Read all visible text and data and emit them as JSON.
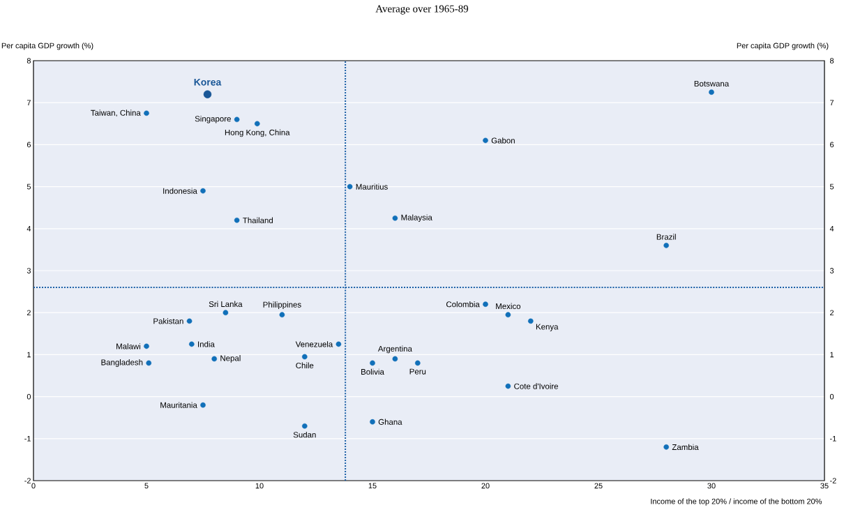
{
  "chart_data": {
    "type": "scatter",
    "title": "Average over 1965-89",
    "xlabel": "Income of the top 20% / income of the bottom 20%",
    "ylabel": "Per capita GDP growth (%)",
    "y2label": "Per capita GDP growth (%)",
    "xlim": [
      0,
      35
    ],
    "xticks": [
      0,
      5,
      10,
      15,
      20,
      25,
      30,
      35
    ],
    "ylim": [
      -2,
      8
    ],
    "yticks": [
      -2,
      -1,
      0,
      1,
      2,
      3,
      4,
      5,
      6,
      7,
      8
    ],
    "y2lim": [
      -2,
      8
    ],
    "y2ticks": [
      -2,
      -1,
      0,
      1,
      2,
      3,
      4,
      5,
      6,
      7,
      8
    ],
    "grid": "y",
    "legend": false,
    "series": [
      {
        "color": "#1170b9",
        "x": [
          5,
          9,
          9.9,
          7.5,
          9,
          30,
          20,
          14,
          16,
          28,
          8.5,
          11,
          6.9,
          5,
          7,
          8,
          5.1,
          13.5,
          12,
          15,
          16,
          17,
          20,
          21,
          22,
          21,
          7.5,
          12,
          15,
          28
        ],
        "values": [
          6.75,
          6.6,
          6.5,
          4.9,
          4.2,
          7.25,
          6.1,
          5,
          4.25,
          3.6,
          2,
          1.95,
          1.8,
          1.2,
          1.25,
          0.9,
          0.8,
          1.25,
          0.95,
          0.8,
          0.9,
          0.8,
          2.2,
          1.95,
          1.8,
          0.25,
          -0.2,
          -0.7,
          -0.6,
          -1.2
        ]
      },
      {
        "name": "Korea",
        "color": "#1a5797",
        "x": [
          7.7
        ],
        "values": [
          7.2
        ]
      }
    ],
    "ref_lines": [
      {
        "axis": "x",
        "value": 13.8,
        "color": "#1a5fa6",
        "line_style": "dotted"
      },
      {
        "axis": "y",
        "value": 2.6,
        "color": "#1a5fa6",
        "line_style": "dotted"
      }
    ],
    "annotations": [
      {
        "text": "Taiwan, China",
        "x": 5,
        "y": 6.75
      },
      {
        "text": "Singapore",
        "x": 9,
        "y": 6.6
      },
      {
        "text": "Hong Kong, China",
        "x": 9.9,
        "y": 6.5
      },
      {
        "text": "Indonesia",
        "x": 7.5,
        "y": 4.9
      },
      {
        "text": "Thailand",
        "x": 9,
        "y": 4.2
      },
      {
        "text": "Botswana",
        "x": 30,
        "y": 7.25
      },
      {
        "text": "Gabon",
        "x": 20,
        "y": 6.1
      },
      {
        "text": "Mauritius",
        "x": 14,
        "y": 5
      },
      {
        "text": "Malaysia",
        "x": 16,
        "y": 4.25
      },
      {
        "text": "Brazil",
        "x": 28,
        "y": 3.6
      },
      {
        "text": "Sri Lanka",
        "x": 8.5,
        "y": 2
      },
      {
        "text": "Philippines",
        "x": 11,
        "y": 1.95
      },
      {
        "text": "Pakistan",
        "x": 6.9,
        "y": 1.8
      },
      {
        "text": "Malawi",
        "x": 5,
        "y": 1.2
      },
      {
        "text": "India",
        "x": 7,
        "y": 1.25
      },
      {
        "text": "Nepal",
        "x": 8,
        "y": 0.9
      },
      {
        "text": "Bangladesh",
        "x": 5.1,
        "y": 0.8
      },
      {
        "text": "Venezuela",
        "x": 13.5,
        "y": 1.25
      },
      {
        "text": "Chile",
        "x": 12,
        "y": 0.95
      },
      {
        "text": "Bolivia",
        "x": 15,
        "y": 0.8
      },
      {
        "text": "Argentina",
        "x": 16,
        "y": 0.9
      },
      {
        "text": "Peru",
        "x": 17,
        "y": 0.8
      },
      {
        "text": "Colombia",
        "x": 20,
        "y": 2.2
      },
      {
        "text": "Mexico",
        "x": 21,
        "y": 1.95
      },
      {
        "text": "Kenya",
        "x": 22,
        "y": 1.8
      },
      {
        "text": "Cote d'Ivoire",
        "x": 21,
        "y": 0.25
      },
      {
        "text": "Mauritania",
        "x": 7.5,
        "y": -0.2
      },
      {
        "text": "Sudan",
        "x": 12,
        "y": -0.7
      },
      {
        "text": "Ghana",
        "x": 15,
        "y": -0.6
      },
      {
        "text": "Zambia",
        "x": 28,
        "y": -1.2
      }
    ]
  }
}
